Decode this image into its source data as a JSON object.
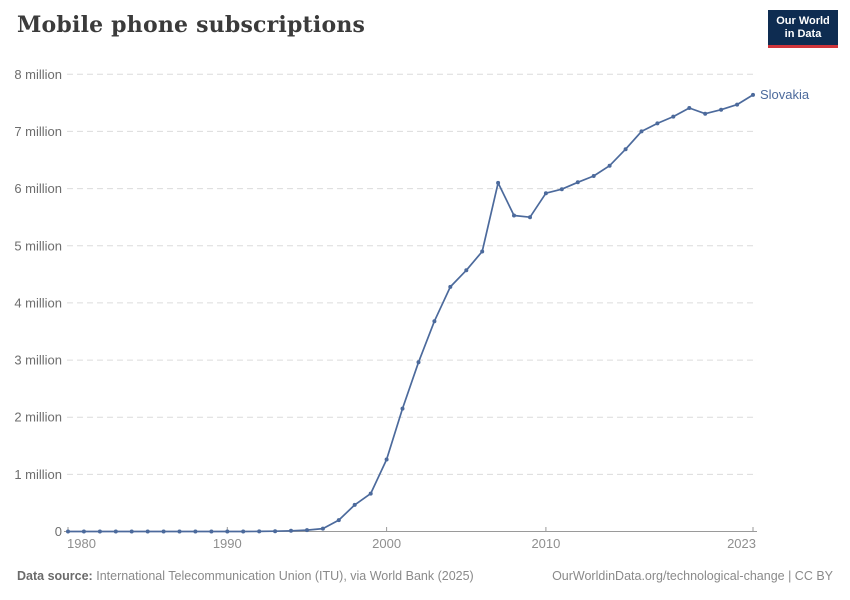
{
  "header": {
    "title": "Mobile phone subscriptions",
    "logo": {
      "line1": "Our World",
      "line2": "in Data",
      "bg_color": "#0e2c51",
      "accent_color": "#d0353b"
    }
  },
  "chart_data": {
    "type": "line",
    "title": "Mobile phone subscriptions",
    "unit": "million",
    "grid": true,
    "legend_position": "end-of-line",
    "xlim": [
      1980,
      2023
    ],
    "ylim": [
      0,
      8
    ],
    "x": [
      1980,
      1981,
      1982,
      1983,
      1984,
      1985,
      1986,
      1987,
      1988,
      1989,
      1990,
      1991,
      1992,
      1993,
      1994,
      1995,
      1996,
      1997,
      1998,
      1999,
      2000,
      2001,
      2002,
      2003,
      2004,
      2005,
      2006,
      2007,
      2008,
      2009,
      2010,
      2011,
      2012,
      2013,
      2014,
      2015,
      2016,
      2017,
      2018,
      2019,
      2020,
      2021,
      2022,
      2023
    ],
    "series": [
      {
        "name": "Slovakia",
        "color": "#4c6a9c",
        "values": [
          0,
          0,
          0,
          0,
          0,
          0,
          0,
          0,
          0,
          0,
          0,
          0,
          0.002,
          0.005,
          0.012,
          0.025,
          0.05,
          0.2,
          0.465,
          0.664,
          1.26,
          2.15,
          2.96,
          3.68,
          4.28,
          4.57,
          4.9,
          6.1,
          5.53,
          5.5,
          5.92,
          5.99,
          6.11,
          6.22,
          6.4,
          6.69,
          7.0,
          7.14,
          7.26,
          7.41,
          7.31,
          7.38,
          7.47,
          7.64
        ]
      }
    ],
    "yticks": [
      {
        "value": 0,
        "label": "0"
      },
      {
        "value": 1,
        "label": "1 million"
      },
      {
        "value": 2,
        "label": "2 million"
      },
      {
        "value": 3,
        "label": "3 million"
      },
      {
        "value": 4,
        "label": "4 million"
      },
      {
        "value": 5,
        "label": "5 million"
      },
      {
        "value": 6,
        "label": "6 million"
      },
      {
        "value": 7,
        "label": "7 million"
      },
      {
        "value": 8,
        "label": "8 million"
      }
    ],
    "xticks": [
      {
        "year": 1980,
        "label": "1980"
      },
      {
        "year": 1990,
        "label": "1990"
      },
      {
        "year": 2000,
        "label": "2000"
      },
      {
        "year": 2010,
        "label": "2010"
      },
      {
        "year": 2023,
        "label": "2023"
      }
    ],
    "colors": {
      "gridline": "#dcdcdc",
      "axis": "#9a9a9a",
      "y_label": "#6d6d6d",
      "x_label": "#8f8f8f"
    }
  },
  "footer": {
    "source_prefix": "Data source:",
    "source_text": "International Telecommunication Union (ITU), via World Bank (2025)",
    "link_text": "OurWorldinData.org/technological-change | CC BY"
  }
}
